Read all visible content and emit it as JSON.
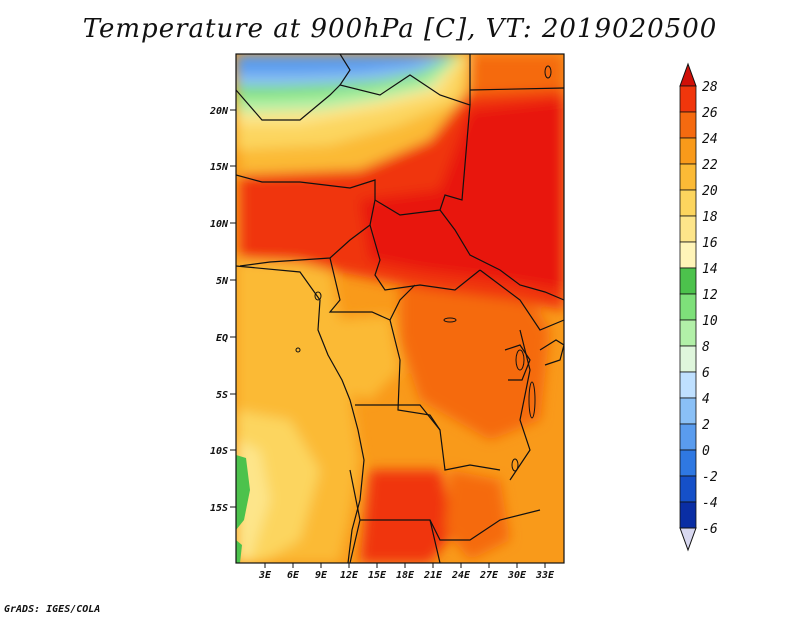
{
  "title": "Temperature at 900hPa [C], VT: 2019020500",
  "credit": "GrADS: IGES/COLA",
  "lat_labels": [
    "20N",
    "15N",
    "10N",
    "5N",
    "EQ",
    "5S",
    "10S",
    "15S"
  ],
  "lon_labels": [
    "3E",
    "6E",
    "9E",
    "12E",
    "15E",
    "18E",
    "21E",
    "24E",
    "27E",
    "30E",
    "33E"
  ],
  "colorbar": {
    "levels": [
      "28",
      "26",
      "24",
      "22",
      "20",
      "18",
      "16",
      "14",
      "12",
      "10",
      "8",
      "6",
      "4",
      "2",
      "0",
      "-2",
      "-4",
      "-6"
    ],
    "colors": [
      "#e8190f",
      "#f0360c",
      "#f56a10",
      "#f99a1a",
      "#fbba36",
      "#fcd55e",
      "#fde58a",
      "#fff4b8",
      "#4cc24c",
      "#7ee07a",
      "#b2f0a8",
      "#dff6dc",
      "#bfe0ff",
      "#8ac0f6",
      "#5a9cee",
      "#2f78e2",
      "#1550c8",
      "#0a2ea4",
      "#061b7a"
    ],
    "top_cap_color": "#d01008",
    "bottom_cap_color": "#d8d8f0"
  }
}
